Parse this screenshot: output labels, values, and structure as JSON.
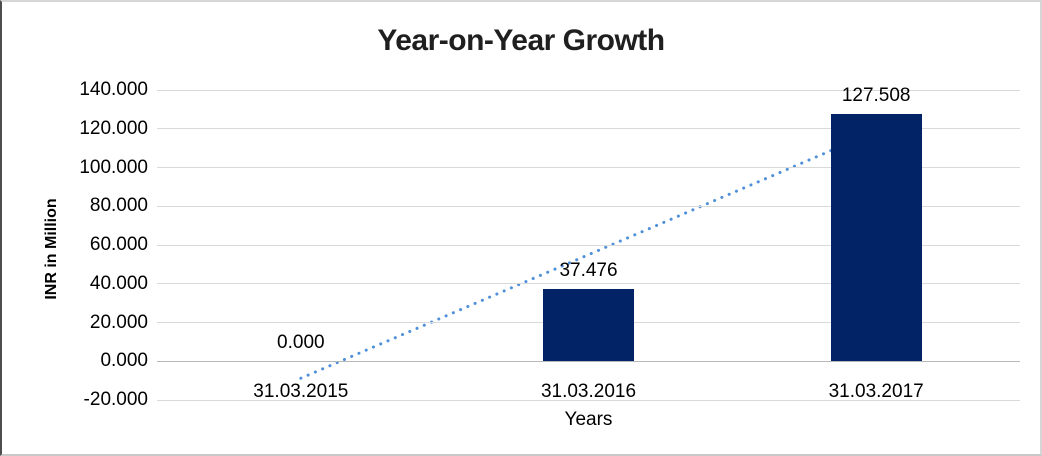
{
  "chart_data": {
    "type": "bar",
    "title": "Year-on-Year Growth",
    "categories": [
      "31.03.2015",
      "31.03.2016",
      "31.03.2017"
    ],
    "values": [
      0.0,
      37.476,
      127.508
    ],
    "value_labels": [
      "0.000",
      "37.476",
      "127.508"
    ],
    "xlabel": "Years",
    "ylabel": "INR in Million",
    "ylim": [
      -20,
      140
    ],
    "ytick_values": [
      140,
      120,
      100,
      80,
      60,
      40,
      20,
      0,
      -20
    ],
    "ytick_labels": [
      "140.000",
      "120.000",
      "100.000",
      "80.000",
      "60.000",
      "40.000",
      "20.000",
      "0.000",
      "-20.000"
    ],
    "grid": true,
    "legend": false,
    "bar_color": "#022366",
    "gridline_color": "#d9d9d9",
    "axis_line_color": "#b8b8b8",
    "trendline": {
      "type": "linear",
      "style": "dotted",
      "color": "#4f90d9",
      "start_category_index": 0,
      "start_value": -8.76,
      "end_category_index": 2,
      "end_value": 118.75
    }
  }
}
